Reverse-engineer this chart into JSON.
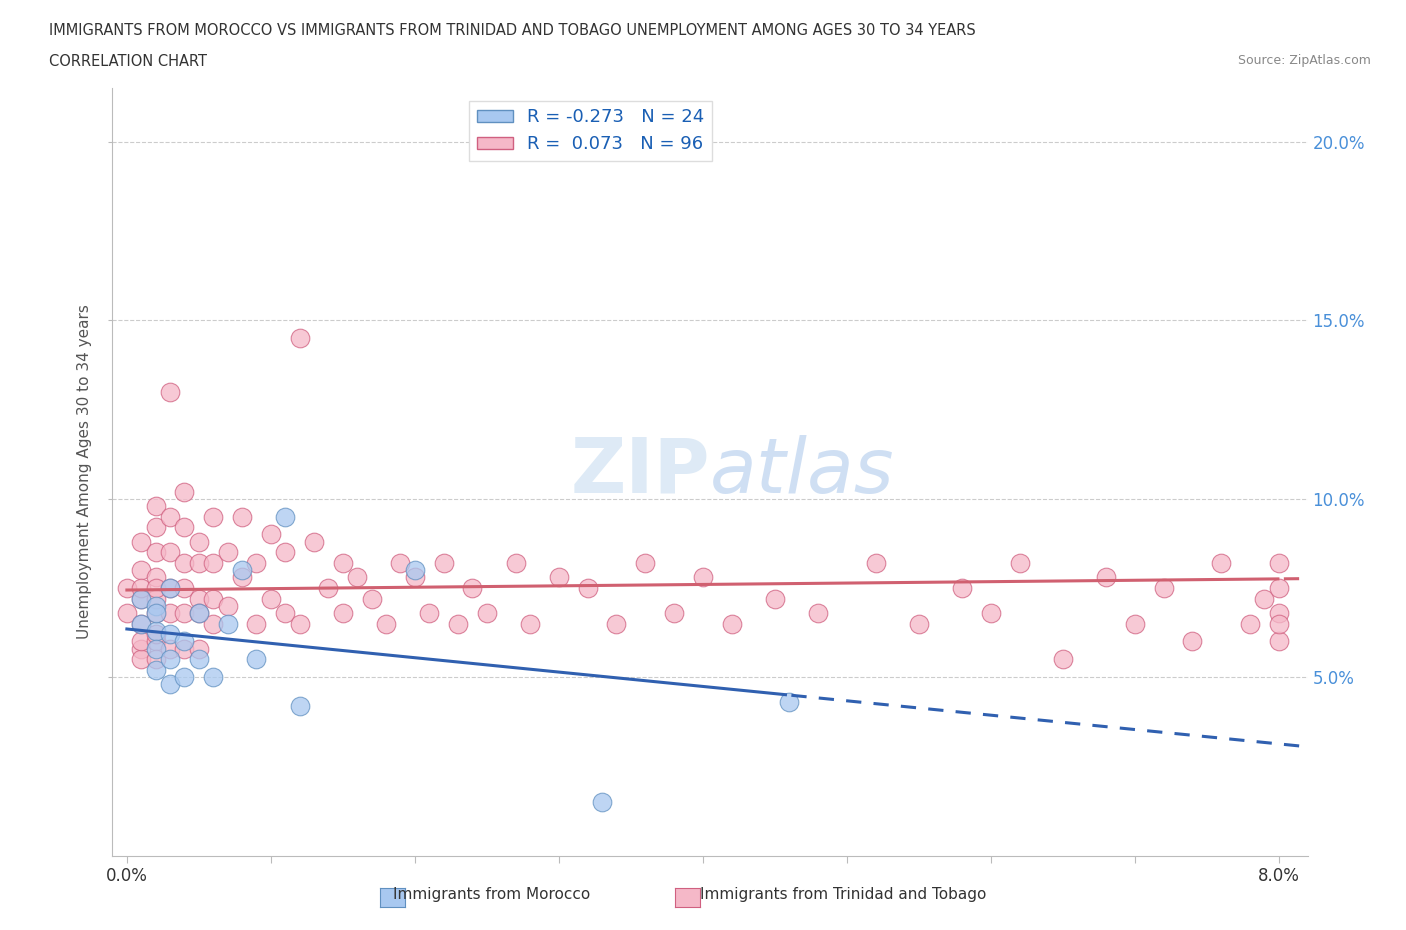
{
  "title_line1": "IMMIGRANTS FROM MOROCCO VS IMMIGRANTS FROM TRINIDAD AND TOBAGO UNEMPLOYMENT AMONG AGES 30 TO 34 YEARS",
  "title_line2": "CORRELATION CHART",
  "source_text": "Source: ZipAtlas.com",
  "ylabel": "Unemployment Among Ages 30 to 34 years",
  "color_morocco": "#a8c8f0",
  "color_tt": "#f5b8c8",
  "color_morocco_edge": "#6090c0",
  "color_tt_edge": "#d06080",
  "color_morocco_line": "#3060b0",
  "color_tt_line": "#d06070",
  "watermark_color": "#d0e4f5",
  "xlim": [
    0.0,
    0.082
  ],
  "ylim": [
    0.0,
    0.215
  ],
  "ytick_vals": [
    0.05,
    0.1,
    0.15,
    0.2
  ],
  "ytick_labels": [
    "5.0%",
    "10.0%",
    "15.0%",
    "20.0%"
  ],
  "morocco_x": [
    0.001,
    0.001,
    0.002,
    0.002,
    0.002,
    0.002,
    0.002,
    0.003,
    0.003,
    0.003,
    0.003,
    0.004,
    0.004,
    0.005,
    0.005,
    0.006,
    0.007,
    0.008,
    0.009,
    0.011,
    0.012,
    0.02,
    0.033,
    0.046
  ],
  "morocco_y": [
    0.072,
    0.065,
    0.07,
    0.063,
    0.058,
    0.052,
    0.068,
    0.075,
    0.062,
    0.055,
    0.048,
    0.06,
    0.05,
    0.068,
    0.055,
    0.05,
    0.065,
    0.08,
    0.055,
    0.095,
    0.042,
    0.08,
    0.015,
    0.043
  ],
  "tt_x": [
    0.0,
    0.0,
    0.001,
    0.001,
    0.001,
    0.001,
    0.001,
    0.001,
    0.001,
    0.001,
    0.002,
    0.002,
    0.002,
    0.002,
    0.002,
    0.002,
    0.002,
    0.002,
    0.002,
    0.002,
    0.003,
    0.003,
    0.003,
    0.003,
    0.003,
    0.003,
    0.004,
    0.004,
    0.004,
    0.004,
    0.004,
    0.004,
    0.005,
    0.005,
    0.005,
    0.005,
    0.005,
    0.006,
    0.006,
    0.006,
    0.006,
    0.007,
    0.007,
    0.008,
    0.008,
    0.009,
    0.009,
    0.01,
    0.01,
    0.011,
    0.011,
    0.012,
    0.012,
    0.013,
    0.014,
    0.015,
    0.015,
    0.016,
    0.017,
    0.018,
    0.019,
    0.02,
    0.021,
    0.022,
    0.023,
    0.024,
    0.025,
    0.027,
    0.028,
    0.03,
    0.032,
    0.034,
    0.036,
    0.038,
    0.04,
    0.042,
    0.045,
    0.048,
    0.052,
    0.055,
    0.058,
    0.06,
    0.062,
    0.065,
    0.068,
    0.07,
    0.072,
    0.074,
    0.076,
    0.078,
    0.079,
    0.08,
    0.08,
    0.08,
    0.08,
    0.08
  ],
  "tt_y": [
    0.068,
    0.075,
    0.065,
    0.072,
    0.058,
    0.08,
    0.055,
    0.088,
    0.06,
    0.075,
    0.092,
    0.078,
    0.068,
    0.06,
    0.085,
    0.055,
    0.072,
    0.098,
    0.062,
    0.075,
    0.13,
    0.085,
    0.068,
    0.095,
    0.058,
    0.075,
    0.082,
    0.068,
    0.092,
    0.058,
    0.075,
    0.102,
    0.088,
    0.072,
    0.058,
    0.082,
    0.068,
    0.095,
    0.072,
    0.082,
    0.065,
    0.085,
    0.07,
    0.095,
    0.078,
    0.082,
    0.065,
    0.09,
    0.072,
    0.085,
    0.068,
    0.145,
    0.065,
    0.088,
    0.075,
    0.082,
    0.068,
    0.078,
    0.072,
    0.065,
    0.082,
    0.078,
    0.068,
    0.082,
    0.065,
    0.075,
    0.068,
    0.082,
    0.065,
    0.078,
    0.075,
    0.065,
    0.082,
    0.068,
    0.078,
    0.065,
    0.072,
    0.068,
    0.082,
    0.065,
    0.075,
    0.068,
    0.082,
    0.055,
    0.078,
    0.065,
    0.075,
    0.06,
    0.082,
    0.065,
    0.072,
    0.068,
    0.075,
    0.06,
    0.082,
    0.065
  ]
}
